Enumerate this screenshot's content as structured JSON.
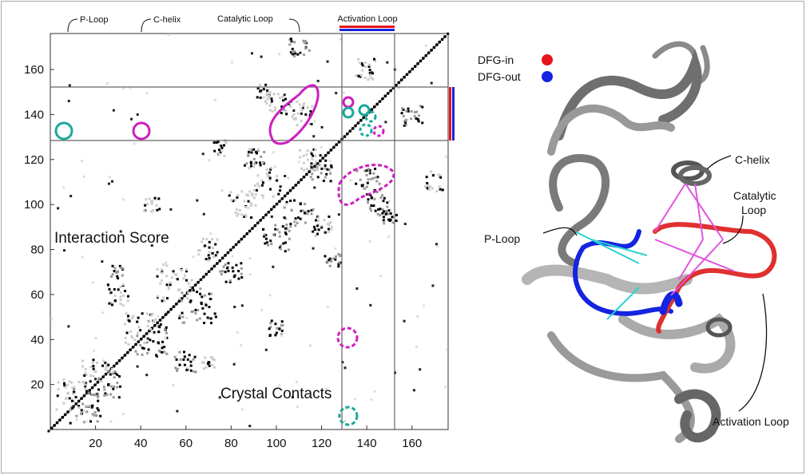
{
  "contact_map": {
    "xlim": [
      0,
      176
    ],
    "ylim": [
      0,
      176
    ],
    "xticks": [
      20,
      40,
      60,
      80,
      100,
      120,
      140,
      160
    ],
    "yticks": [
      20,
      40,
      60,
      80,
      100,
      120,
      140,
      160
    ],
    "region_labels": [
      "P-Loop",
      "C-helix",
      "Catalytic Loop",
      "Activation Loop"
    ],
    "annotations": [
      "Interaction Score",
      "Crystal Contacts"
    ]
  },
  "structure": {
    "legend": [
      {
        "label": "DFG-in",
        "color": "#e8141c"
      },
      {
        "label": "DFG-out",
        "color": "#1424e0"
      }
    ],
    "labels": {
      "c_helix": "C-helix",
      "catalytic_loop": [
        "Catalytic",
        "Loop"
      ],
      "p_loop": "P-Loop",
      "activation_loop": "Activation Loop"
    }
  }
}
